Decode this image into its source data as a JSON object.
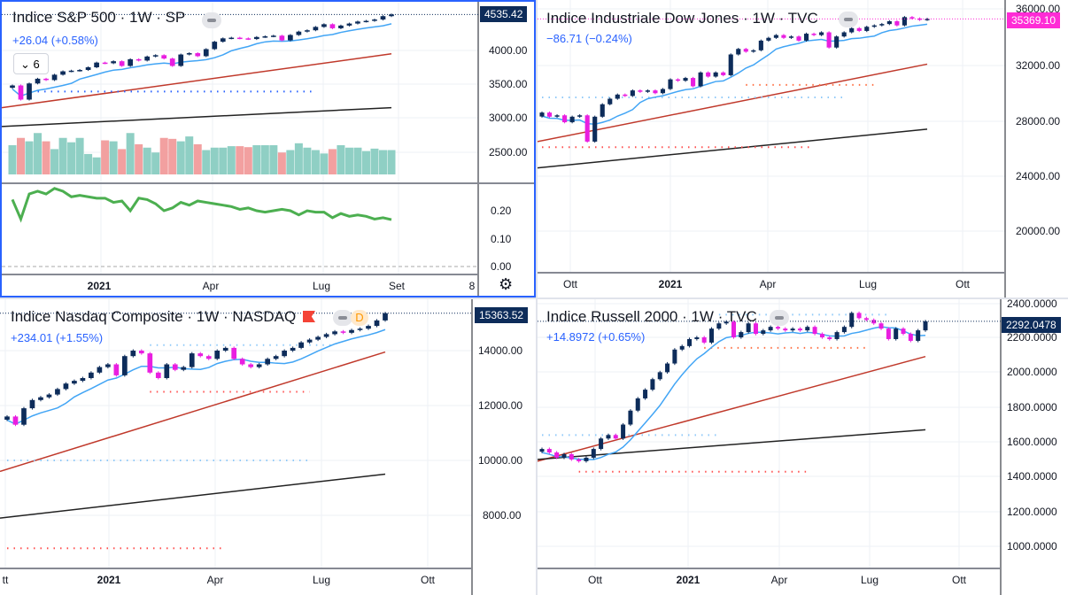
{
  "colors": {
    "up": "#0d2c5a",
    "down": "#e91ee0",
    "ma_fast": "#42a5f5",
    "ma_mid": "#c0392b",
    "ma_slow": "#222222",
    "vol_up": "#8fcfc4",
    "vol_down": "#f2a0a0",
    "osc": "#4caf50",
    "active_border": "#2962ff",
    "tag_dark": "#0d2c5a",
    "tag_pink": "#ff2bd6"
  },
  "panels": [
    {
      "title": "Indice S&P 500 · 1W · SP",
      "change": "+26.04 (+0.58%)",
      "indicator_toggle": "6",
      "last_price": "4535.42",
      "price_axis": [
        "4000.00",
        "3500.00",
        "3000.00",
        "2500.00"
      ],
      "osc_axis": [
        "0.20",
        "0.10",
        "0.00"
      ],
      "time_axis": [
        "2021",
        "Apr",
        "Lug",
        "Set",
        "8"
      ]
    },
    {
      "title": "Indice Industriale Dow Jones · 1W · TVC",
      "change": "−86.71 (−0.24%)",
      "last_price": "35369.10",
      "price_axis": [
        "36000.00",
        "32000.00",
        "28000.00",
        "24000.00",
        "20000.00"
      ],
      "time_axis": [
        "Ott",
        "2021",
        "Apr",
        "Lug",
        "Ott"
      ]
    },
    {
      "title": "Indice Nasdaq Composite · 1W · NASDAQ",
      "change": "+234.01 (+1.55%)",
      "interval_badge": "D",
      "last_price": "15363.52",
      "price_axis": [
        "14000.00",
        "12000.00",
        "10000.00",
        "8000.00"
      ],
      "time_axis": [
        "tt",
        "2021",
        "Apr",
        "Lug",
        "Ott"
      ]
    },
    {
      "title": "Indice Russell 2000 · 1W · TVC",
      "change": "+14.8972 (+0.65%)",
      "last_price": "2292.0478",
      "price_axis": [
        "2400.0000",
        "2200.0000",
        "2000.0000",
        "1800.0000",
        "1600.0000",
        "1400.0000",
        "1200.0000",
        "1000.0000"
      ],
      "time_axis": [
        "Ott",
        "2021",
        "Apr",
        "Lug",
        "Ott"
      ]
    }
  ],
  "chart_data": [
    {
      "type": "candlestick",
      "name": "S&P 500",
      "closes": [
        3480,
        3270,
        3510,
        3580,
        3560,
        3640,
        3690,
        3700,
        3710,
        3750,
        3820,
        3810,
        3840,
        3770,
        3870,
        3850,
        3910,
        3930,
        3880,
        3770,
        3940,
        3960,
        3915,
        4020,
        4130,
        4180,
        4190,
        4180,
        4170,
        4200,
        4210,
        4220,
        4150,
        4230,
        4280,
        4300,
        4350,
        4390,
        4330,
        4370,
        4400,
        4430,
        4440,
        4460,
        4510,
        4535
      ],
      "ma_mid": [
        3150,
        3950
      ],
      "ma_slow": [
        2870,
        3150
      ],
      "volume": [
        60,
        75,
        68,
        85,
        68,
        52,
        75,
        66,
        75,
        42,
        35,
        70,
        68,
        52,
        85,
        62,
        55,
        45,
        75,
        73,
        68,
        78,
        62,
        50,
        55,
        55,
        58,
        58,
        56,
        60,
        60,
        60,
        45,
        50,
        64,
        55,
        50,
        43,
        52,
        60,
        55,
        55,
        48,
        53,
        50,
        50
      ],
      "oscillator": [
        0.24,
        0.17,
        0.26,
        0.27,
        0.26,
        0.28,
        0.27,
        0.25,
        0.255,
        0.25,
        0.245,
        0.245,
        0.23,
        0.235,
        0.2,
        0.245,
        0.24,
        0.225,
        0.2,
        0.21,
        0.23,
        0.22,
        0.235,
        0.23,
        0.225,
        0.22,
        0.215,
        0.205,
        0.21,
        0.2,
        0.195,
        0.2,
        0.205,
        0.2,
        0.185,
        0.2,
        0.195,
        0.195,
        0.175,
        0.19,
        0.18,
        0.185,
        0.18,
        0.17,
        0.175,
        0.168
      ],
      "dotted_levels": [
        {
          "value": 3390,
          "from": 3,
          "to": 36,
          "color": "#2962ff"
        }
      ]
    },
    {
      "type": "candlestick",
      "name": "Dow Jones",
      "closes": [
        28600,
        28300,
        28400,
        27900,
        28300,
        28400,
        26500,
        28300,
        29200,
        29600,
        29900,
        29800,
        30200,
        30100,
        30200,
        30000,
        30300,
        31000,
        30900,
        31100,
        30500,
        31500,
        31200,
        31500,
        31300,
        32800,
        33200,
        33000,
        33100,
        33800,
        34000,
        34200,
        34000,
        34100,
        33800,
        34300,
        34200,
        34400,
        33300,
        34100,
        34400,
        34700,
        34500,
        34800,
        34900,
        35000,
        35200,
        34900,
        35500,
        35400,
        35300,
        35369
      ],
      "ma_mid": [
        26500,
        32100
      ],
      "ma_slow": [
        24600,
        27400
      ],
      "dotted_levels": [
        {
          "value": 29700,
          "from": 0,
          "to": 40,
          "color": "#90caf9"
        },
        {
          "value": 26100,
          "from": 0,
          "to": 36,
          "color": "#ff5252"
        },
        {
          "value": 30600,
          "from": 27,
          "to": 44,
          "color": "#ff7043"
        }
      ]
    },
    {
      "type": "candlestick",
      "name": "Nasdaq Composite",
      "closes": [
        11600,
        11300,
        11900,
        12200,
        12300,
        12400,
        12600,
        12800,
        12900,
        13000,
        13200,
        13400,
        13500,
        13100,
        13800,
        14000,
        13900,
        13200,
        13000,
        13500,
        13300,
        13400,
        13900,
        13800,
        13700,
        14000,
        14100,
        13700,
        13500,
        13400,
        13500,
        13700,
        13800,
        14000,
        14100,
        14300,
        14400,
        14500,
        14600,
        14700,
        14650,
        14750,
        14800,
        14900,
        15100,
        15363
      ],
      "ma_mid": [
        9600,
        13950
      ],
      "ma_slow": [
        7900,
        9500
      ],
      "dotted_levels": [
        {
          "value": 10000,
          "from": 0,
          "to": 36,
          "color": "#90caf9"
        },
        {
          "value": 12500,
          "from": 17,
          "to": 36,
          "color": "#ff5252"
        },
        {
          "value": 14200,
          "from": 17,
          "to": 39,
          "color": "#90caf9"
        },
        {
          "value": 6800,
          "from": 0,
          "to": 26,
          "color": "#ff5252"
        }
      ]
    },
    {
      "type": "candlestick",
      "name": "Russell 2000",
      "closes": [
        1560,
        1540,
        1510,
        1530,
        1500,
        1490,
        1510,
        1560,
        1620,
        1640,
        1620,
        1700,
        1780,
        1850,
        1900,
        1960,
        2000,
        2050,
        2130,
        2150,
        2190,
        2200,
        2170,
        2250,
        2280,
        2290,
        2200,
        2230,
        2280,
        2220,
        2240,
        2260,
        2250,
        2240,
        2250,
        2240,
        2260,
        2220,
        2200,
        2190,
        2230,
        2260,
        2340,
        2310,
        2300,
        2280,
        2250,
        2190,
        2250,
        2220,
        2180,
        2240,
        2292
      ],
      "ma_mid": [
        1490,
        2090
      ],
      "ma_slow": [
        1500,
        1670
      ],
      "dotted_levels": [
        {
          "value": 1640,
          "from": 0,
          "to": 24,
          "color": "#90caf9"
        },
        {
          "value": 1430,
          "from": 5,
          "to": 36,
          "color": "#ff5252"
        },
        {
          "value": 2140,
          "from": 22,
          "to": 44,
          "color": "#ff7043"
        },
        {
          "value": 2330,
          "from": 24,
          "to": 47,
          "color": "#90caf9"
        }
      ]
    }
  ]
}
